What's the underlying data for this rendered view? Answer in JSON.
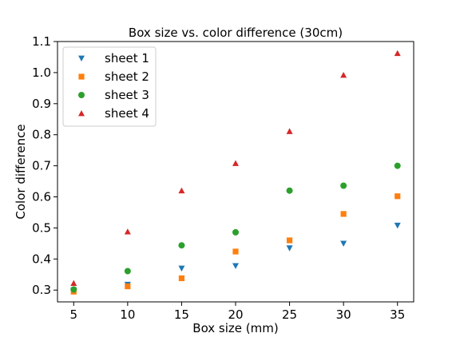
{
  "chart_data": {
    "type": "scatter",
    "title": "Box size vs. color difference (30cm)",
    "xlabel": "Box size (mm)",
    "ylabel": "Color difference",
    "xlim": [
      3.5,
      36.5
    ],
    "ylim": [
      0.262,
      1.1
    ],
    "xticks": [
      5,
      10,
      15,
      20,
      25,
      30,
      35
    ],
    "xtick_labels": [
      "5",
      "10",
      "15",
      "20",
      "25",
      "30",
      "35"
    ],
    "yticks": [
      0.3,
      0.4,
      0.5,
      0.6,
      0.7,
      0.8,
      0.9,
      1.0,
      1.1
    ],
    "ytick_labels": [
      "0.3",
      "0.4",
      "0.5",
      "0.6",
      "0.7",
      "0.8",
      "0.9",
      "1.0",
      "1.1"
    ],
    "grid": false,
    "legend_position": "upper-left",
    "x": [
      5,
      10,
      15,
      20,
      25,
      30,
      35
    ],
    "series": [
      {
        "name": "sheet 1",
        "marker": "triangle-down",
        "color": "#1f77b4",
        "values": [
          0.3,
          0.318,
          0.37,
          0.378,
          0.435,
          0.45,
          0.508
        ]
      },
      {
        "name": "sheet 2",
        "marker": "square",
        "color": "#ff7f0e",
        "values": [
          0.295,
          0.312,
          0.338,
          0.424,
          0.46,
          0.545,
          0.602
        ]
      },
      {
        "name": "sheet 3",
        "marker": "circle",
        "color": "#2ca02c",
        "values": [
          0.302,
          0.361,
          0.444,
          0.486,
          0.62,
          0.636,
          0.7
        ]
      },
      {
        "name": "sheet 4",
        "marker": "triangle-up",
        "color": "#d62728",
        "values": [
          0.322,
          0.488,
          0.62,
          0.708,
          0.811,
          0.992,
          1.062
        ]
      }
    ]
  }
}
